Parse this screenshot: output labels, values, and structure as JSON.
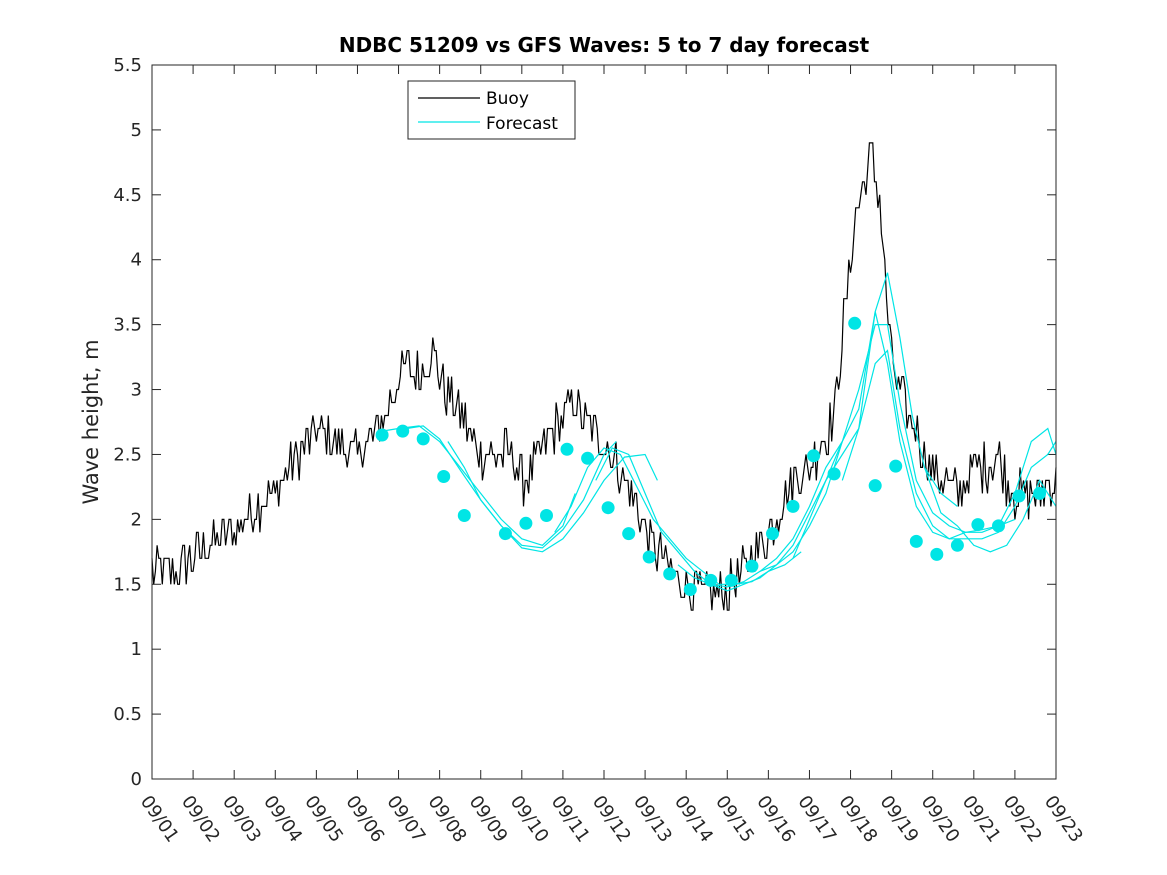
{
  "chart_data": {
    "type": "line",
    "title": "NDBC 51209 vs GFS Waves: 5 to 7 day forecast",
    "xlabel": "",
    "ylabel": "Wave height, m",
    "xlim": [
      0,
      22
    ],
    "ylim": [
      0,
      5.5
    ],
    "x_ticks": [
      "09/01",
      "09/02",
      "09/03",
      "09/04",
      "09/05",
      "09/06",
      "09/07",
      "09/08",
      "09/09",
      "09/10",
      "09/11",
      "09/12",
      "09/13",
      "09/14",
      "09/15",
      "09/16",
      "09/17",
      "09/18",
      "09/19",
      "09/20",
      "09/21",
      "09/22",
      "09/23"
    ],
    "y_ticks": [
      "0",
      "0.5",
      "1",
      "1.5",
      "2",
      "2.5",
      "3",
      "3.5",
      "4",
      "4.5",
      "5",
      "5.5"
    ],
    "legend": [
      {
        "label": "Buoy",
        "color": "#000000"
      },
      {
        "label": "Forecast",
        "color": "#00e5e5"
      }
    ],
    "legend_position": "top-left",
    "buoy_keypoints": {
      "x": [
        0,
        0.5,
        1,
        1.5,
        2,
        2.5,
        3,
        3.3,
        3.6,
        4,
        4.5,
        5,
        5.3,
        5.7,
        6,
        6.2,
        6.5,
        6.8,
        7,
        7.3,
        7.7,
        8,
        8.4,
        8.8,
        9,
        9.3,
        9.6,
        10,
        10.3,
        10.6,
        11,
        11.2,
        11.5,
        11.8,
        12,
        12.3,
        12.6,
        13,
        13.3,
        13.6,
        13.8,
        14,
        14.3,
        14.6,
        15,
        15.3,
        15.6,
        16,
        16.3,
        16.6,
        16.8,
        17,
        17.1,
        17.3,
        17.5,
        17.7,
        17.85,
        18,
        18.2,
        18.4,
        18.6,
        18.8,
        19,
        19.3,
        19.6,
        19.8,
        20,
        20.3,
        20.6,
        20.8,
        21,
        21.3,
        21.6,
        21.8,
        22
      ],
      "y": [
        1.6,
        1.6,
        1.7,
        1.85,
        1.9,
        2.1,
        2.2,
        2.4,
        2.5,
        2.7,
        2.6,
        2.5,
        2.6,
        2.8,
        3.1,
        3.2,
        3.1,
        3.3,
        3.1,
        2.9,
        2.7,
        2.5,
        2.5,
        2.5,
        2.3,
        2.4,
        2.6,
        2.8,
        2.9,
        2.7,
        2.6,
        2.5,
        2.3,
        2.1,
        1.9,
        1.75,
        1.6,
        1.5,
        1.45,
        1.4,
        1.45,
        1.45,
        1.55,
        1.7,
        1.9,
        2.1,
        2.3,
        2.4,
        2.6,
        2.8,
        3.4,
        4.0,
        4.3,
        4.6,
        4.8,
        4.5,
        3.8,
        3.2,
        3.0,
        2.8,
        2.7,
        2.5,
        2.4,
        2.3,
        2.2,
        2.3,
        2.4,
        2.4,
        2.5,
        2.3,
        2.2,
        2.2,
        2.2,
        2.3,
        2.3
      ]
    },
    "forecast_runs": [
      {
        "x": [
          5.6,
          6,
          6.5,
          7,
          7.5,
          8,
          8.5,
          9,
          9.5,
          10,
          10.3
        ],
        "y": [
          2.68,
          2.7,
          2.72,
          2.6,
          2.4,
          2.2,
          2.0,
          1.85,
          1.8,
          1.95,
          2.2
        ]
      },
      {
        "x": [
          6.2,
          6.6,
          7,
          7.5,
          8,
          8.5,
          9,
          9.5,
          10,
          10.5,
          11,
          11.3
        ],
        "y": [
          2.7,
          2.72,
          2.62,
          2.38,
          2.15,
          1.95,
          1.8,
          1.78,
          1.92,
          2.15,
          2.5,
          2.6
        ]
      },
      {
        "x": [
          7.2,
          7.6,
          8,
          8.5,
          9,
          9.5,
          10,
          10.5,
          11,
          11.5,
          12,
          12.3
        ],
        "y": [
          2.6,
          2.4,
          2.15,
          1.95,
          1.78,
          1.75,
          1.85,
          2.05,
          2.3,
          2.48,
          2.5,
          2.3
        ]
      },
      {
        "x": [
          9.8,
          10.2,
          10.6,
          11,
          11.4,
          11.8,
          12.2,
          12.6,
          13,
          13.4,
          13.8,
          14.2,
          14.6,
          15,
          15.4,
          15.8
        ],
        "y": [
          1.9,
          2.1,
          2.4,
          2.55,
          2.5,
          2.25,
          2.0,
          1.85,
          1.7,
          1.6,
          1.5,
          1.5,
          1.52,
          1.6,
          1.65,
          1.75
        ]
      },
      {
        "x": [
          10.8,
          11.2,
          11.6,
          12,
          12.4,
          12.8,
          13.2,
          13.6,
          14,
          14.4,
          14.8,
          15.2,
          15.6,
          16,
          16.4,
          16.8
        ],
        "y": [
          2.3,
          2.55,
          2.5,
          2.2,
          1.9,
          1.75,
          1.6,
          1.5,
          1.45,
          1.5,
          1.55,
          1.65,
          1.75,
          1.95,
          2.2,
          2.6
        ]
      },
      {
        "x": [
          12.8,
          13.2,
          13.6,
          14,
          14.4,
          14.8,
          15.2,
          15.6,
          16,
          16.4,
          16.8,
          17.2,
          17.6,
          17.9,
          18.2,
          18.5,
          18.8,
          19.2,
          19.6
        ],
        "y": [
          1.65,
          1.55,
          1.5,
          1.48,
          1.52,
          1.6,
          1.7,
          1.85,
          2.1,
          2.4,
          2.6,
          2.85,
          3.6,
          3.9,
          3.4,
          2.8,
          2.4,
          2.2,
          2.1
        ]
      },
      {
        "x": [
          14.8,
          15.2,
          15.6,
          16,
          16.4,
          16.8,
          17.2,
          17.6,
          17.9,
          18.2,
          18.6,
          19,
          19.4,
          19.8,
          20.2,
          20.6,
          21
        ],
        "y": [
          1.6,
          1.65,
          1.8,
          2.05,
          2.3,
          2.6,
          3.0,
          3.5,
          3.5,
          2.9,
          2.3,
          2.05,
          1.95,
          1.9,
          1.92,
          1.95,
          2.0
        ]
      },
      {
        "x": [
          15.6,
          16,
          16.4,
          16.8,
          17.2,
          17.6,
          17.9,
          18.2,
          18.6,
          19,
          19.4,
          19.8,
          20.2,
          20.6,
          21,
          21.4,
          21.8,
          22
        ],
        "y": [
          1.7,
          2.0,
          2.3,
          2.5,
          2.7,
          3.2,
          3.3,
          2.7,
          2.2,
          1.95,
          1.85,
          1.9,
          1.9,
          1.95,
          2.2,
          2.6,
          2.7,
          2.5
        ]
      },
      {
        "x": [
          16.8,
          17.2,
          17.6,
          17.9,
          18.2,
          18.6,
          19,
          19.4,
          19.8,
          20.2,
          20.6,
          21,
          21.4,
          21.8,
          22
        ],
        "y": [
          2.3,
          2.7,
          3.6,
          3.2,
          2.6,
          2.1,
          1.9,
          1.85,
          1.85,
          1.85,
          1.9,
          2.1,
          2.4,
          2.5,
          2.6
        ]
      },
      {
        "x": [
          18.8,
          19.2,
          19.6,
          20,
          20.4,
          20.8,
          21.2,
          21.6,
          22
        ],
        "y": [
          2.4,
          2.05,
          1.95,
          1.8,
          1.75,
          1.8,
          2.0,
          2.3,
          2.1
        ]
      }
    ],
    "forecast_markers": {
      "x": [
        5.6,
        6.1,
        6.6,
        7.1,
        7.6,
        8.6,
        9.1,
        9.6,
        10.1,
        10.6,
        11.1,
        11.6,
        12.1,
        12.6,
        13.1,
        13.6,
        14.1,
        14.6,
        15.1,
        15.6,
        16.1,
        16.6,
        17.1,
        17.6,
        18.1,
        18.6,
        19.1,
        19.6,
        20.1,
        20.6,
        21.1,
        21.6
      ],
      "y": [
        2.65,
        2.68,
        2.62,
        2.33,
        2.03,
        1.89,
        1.97,
        2.03,
        2.54,
        2.47,
        2.09,
        1.89,
        1.71,
        1.58,
        1.46,
        1.53,
        1.53,
        1.64,
        1.89,
        2.1,
        2.49,
        2.35,
        3.51,
        2.26,
        2.41,
        1.83,
        1.73,
        1.8,
        1.96,
        1.95,
        2.18,
        2.2
      ]
    }
  }
}
